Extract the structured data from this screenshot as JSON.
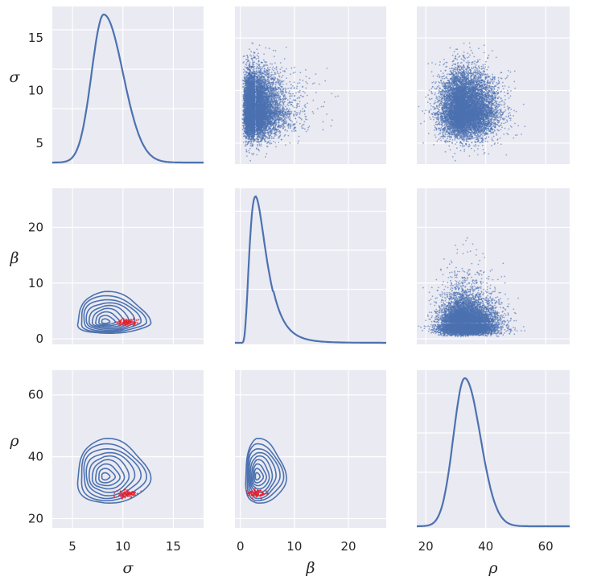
{
  "chart_data": {
    "type": "pairplot",
    "variables": [
      "σ",
      "β",
      "ρ"
    ],
    "axis_labels": [
      "σ",
      "β",
      "ρ"
    ],
    "ranges": [
      [
        3,
        18
      ],
      [
        -1,
        27
      ],
      [
        17,
        68
      ]
    ],
    "ticks": [
      [
        5,
        10,
        15
      ],
      [
        0,
        10,
        20
      ],
      [
        20,
        40,
        60
      ]
    ],
    "grid": true,
    "distributions": [
      {
        "variable": "σ",
        "mode": 8.1,
        "std_left": 1.2,
        "std_right": 1.9
      },
      {
        "variable": "β",
        "mode": 2.8,
        "std_left": 0.9,
        "std_right": 2.3
      },
      {
        "variable": "ρ",
        "mode": 33,
        "std_left": 3.8,
        "std_right": 5.2
      }
    ],
    "scatter_panels": [
      {
        "x": "β",
        "y": "σ",
        "points": 9000
      },
      {
        "x": "ρ",
        "y": "σ",
        "points": 9000
      },
      {
        "x": "ρ",
        "y": "β",
        "points": 9000
      }
    ],
    "contour_panels": [
      {
        "x": "σ",
        "y": "β",
        "center": [
          8.2,
          3.0
        ],
        "highlight_center": [
          10.5,
          3.0
        ]
      },
      {
        "x": "σ",
        "y": "ρ",
        "center": [
          8.2,
          33.5
        ],
        "highlight_center": [
          10.5,
          28.0
        ]
      },
      {
        "x": "β",
        "y": "ρ",
        "center": [
          3.0,
          33.5
        ],
        "highlight_center": [
          3.0,
          28.0
        ]
      }
    ],
    "colors": {
      "series": "#4C72B0",
      "highlight": "#E5202E",
      "background": "#EAEAF2",
      "grid": "#FFFFFF"
    }
  }
}
